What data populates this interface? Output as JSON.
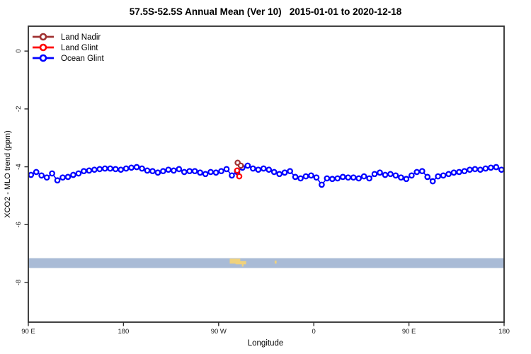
{
  "title": "57.5S-52.5S Annual Mean (Ver 10)   2015-01-01 to 2020-12-18",
  "legend": {
    "items": [
      {
        "label": "Land Nadir",
        "color": "#A03232"
      },
      {
        "label": "Land Glint",
        "color": "#FF0000"
      },
      {
        "label": "Ocean Glint",
        "color": "#0000FF"
      }
    ]
  },
  "chart_data": {
    "type": "scatter",
    "title": "57.5S-52.5S Annual Mean (Ver 10)   2015-01-01 to 2020-12-18",
    "xlabel": "Longitude",
    "ylabel": "XCO2 - MLO trend (ppm)",
    "x_tick_labels": [
      "90 E",
      "180",
      "90 W",
      "0",
      "90 E",
      "180"
    ],
    "x_tick_positions_deg": [
      0,
      90,
      180,
      270,
      360,
      450
    ],
    "xlim_deg": [
      0,
      450
    ],
    "y_ticks": [
      0,
      -2,
      -4,
      -6,
      -8
    ],
    "ylim": [
      -9.37,
      0.86
    ],
    "grid": false,
    "legend_position": "top-left",
    "series": [
      {
        "name": "Ocean Glint",
        "color": "#0000FF",
        "x_start": 2.5,
        "x_step": 5,
        "values": [
          -4.28,
          -4.18,
          -4.3,
          -4.37,
          -4.23,
          -4.47,
          -4.37,
          -4.35,
          -4.28,
          -4.23,
          -4.15,
          -4.13,
          -4.1,
          -4.08,
          -4.06,
          -4.06,
          -4.08,
          -4.1,
          -4.06,
          -4.03,
          -4.01,
          -4.06,
          -4.13,
          -4.15,
          -4.2,
          -4.15,
          -4.1,
          -4.13,
          -4.08,
          -4.18,
          -4.15,
          -4.15,
          -4.2,
          -4.25,
          -4.18,
          -4.2,
          -4.15,
          -4.08,
          -4.3,
          -4.18,
          -4.03,
          -3.96,
          -4.06,
          -4.1,
          -4.06,
          -4.1,
          -4.18,
          -4.25,
          -4.2,
          -4.15,
          -4.35,
          -4.4,
          -4.33,
          -4.3,
          -4.37,
          -4.62,
          -4.4,
          -4.42,
          -4.4,
          -4.35,
          -4.37,
          -4.37,
          -4.4,
          -4.33,
          -4.4,
          -4.25,
          -4.2,
          -4.28,
          -4.25,
          -4.3,
          -4.37,
          -4.42,
          -4.3,
          -4.18,
          -4.15,
          -4.35,
          -4.5,
          -4.33,
          -4.3,
          -4.25,
          -4.2,
          -4.18,
          -4.15,
          -4.1,
          -4.08,
          -4.1,
          -4.06,
          -4.03,
          -4.01,
          -4.1
        ]
      },
      {
        "name": "Land Glint",
        "color": "#FF0000",
        "x": [
          197.5,
          199.5
        ],
        "values": [
          -4.13,
          -4.33
        ]
      },
      {
        "name": "Land Nadir",
        "color": "#A03232",
        "x": [
          198.0,
          201.0
        ],
        "values": [
          -3.86,
          -3.96
        ]
      }
    ],
    "map_band": {
      "ppm_center": -7.33,
      "ppm_half_height": 0.17,
      "ocean_color": "#A9BBD6",
      "land_color": "#F0D27C",
      "land_patches": [
        {
          "lon": [
            190.5,
            200.5
          ],
          "v": [
            0.05,
            0.55
          ]
        },
        {
          "lon": [
            196.0,
            206.0
          ],
          "v": [
            0.3,
            0.62
          ]
        },
        {
          "lon": [
            202.0,
            203.5
          ],
          "v": [
            0.55,
            0.85
          ]
        },
        {
          "lon": [
            233.0,
            234.8
          ],
          "v": [
            0.25,
            0.55
          ]
        }
      ]
    }
  }
}
